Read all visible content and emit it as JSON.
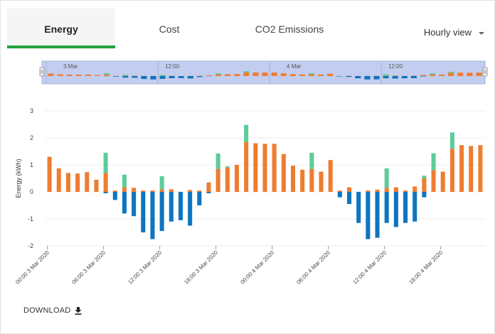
{
  "tabs": [
    {
      "label": "Energy",
      "active": true
    },
    {
      "label": "Cost",
      "active": false
    },
    {
      "label": "CO2 Emissions",
      "active": false
    }
  ],
  "view_select": {
    "value": "Hourly view"
  },
  "navigator": {
    "labels": [
      "3 Mar",
      "12:00",
      "4 Mar",
      "12:00"
    ]
  },
  "download_label": "DOWNLOAD",
  "colors": {
    "consumption": "#ee7d31",
    "export": "#0e75c0",
    "solar": "#5ecc9a",
    "accent": "#21a33f",
    "navigator_fill": "#c3cdef"
  },
  "chart_data": {
    "type": "bar",
    "stacked": true,
    "ylabel": "Energy (kWh)",
    "ylim": [
      -2,
      3
    ],
    "yticks": [
      -2,
      -1,
      0,
      1,
      2,
      3
    ],
    "grid": true,
    "xtick_labels": [
      "00:00 3 Mar 2020",
      "06:00 3 Mar 2020",
      "12:00 3 Mar 2020",
      "18:00 3 Mar 2020",
      "00:00 4 Mar 2020",
      "06:00 4 Mar 2020",
      "12:00 4 Mar 2020",
      "18:00 4 Mar 2020"
    ],
    "series": [
      {
        "values": [
          1.3,
          0.87,
          0.7,
          0.68,
          0.73,
          0.45,
          0.7,
          0.05,
          0.17,
          0.15,
          0.05,
          0.05,
          0.1,
          0.1,
          0.0,
          0.07,
          0.05,
          0.35,
          0.85,
          0.9,
          1.0,
          1.85,
          1.8,
          1.78,
          1.78,
          1.4,
          0.97,
          0.82,
          0.85,
          0.75,
          1.18,
          0.05,
          0.17,
          0.0,
          0.05,
          0.08,
          0.15,
          0.17,
          0.05,
          0.2,
          0.5,
          0.8,
          0.75,
          1.6,
          1.73,
          1.7,
          1.73
        ]
      },
      {
        "values": [
          0,
          0,
          0,
          0,
          0,
          0,
          -0.05,
          -0.3,
          -0.8,
          -0.9,
          -1.5,
          -1.75,
          -1.45,
          -1.1,
          -1.05,
          -1.25,
          -0.5,
          -0.05,
          0,
          0,
          0,
          0,
          0,
          0,
          0,
          0,
          0,
          0,
          0,
          0,
          0,
          -0.2,
          -0.45,
          -1.15,
          -1.75,
          -1.7,
          -1.15,
          -1.3,
          -1.15,
          -1.1,
          -0.2,
          0,
          0,
          0,
          0,
          0,
          0
        ]
      },
      {
        "values": [
          0,
          0,
          0,
          0,
          0,
          0,
          0.75,
          0,
          0.47,
          0,
          0,
          0,
          0.48,
          0,
          0,
          0,
          0,
          0,
          0.57,
          0.05,
          0,
          0.63,
          0,
          0,
          0,
          0,
          0,
          0,
          0.6,
          0,
          0,
          0,
          0,
          0,
          0,
          0,
          0.72,
          0,
          0,
          0,
          0.1,
          0.63,
          0,
          0.6,
          0,
          0,
          0
        ]
      }
    ]
  }
}
